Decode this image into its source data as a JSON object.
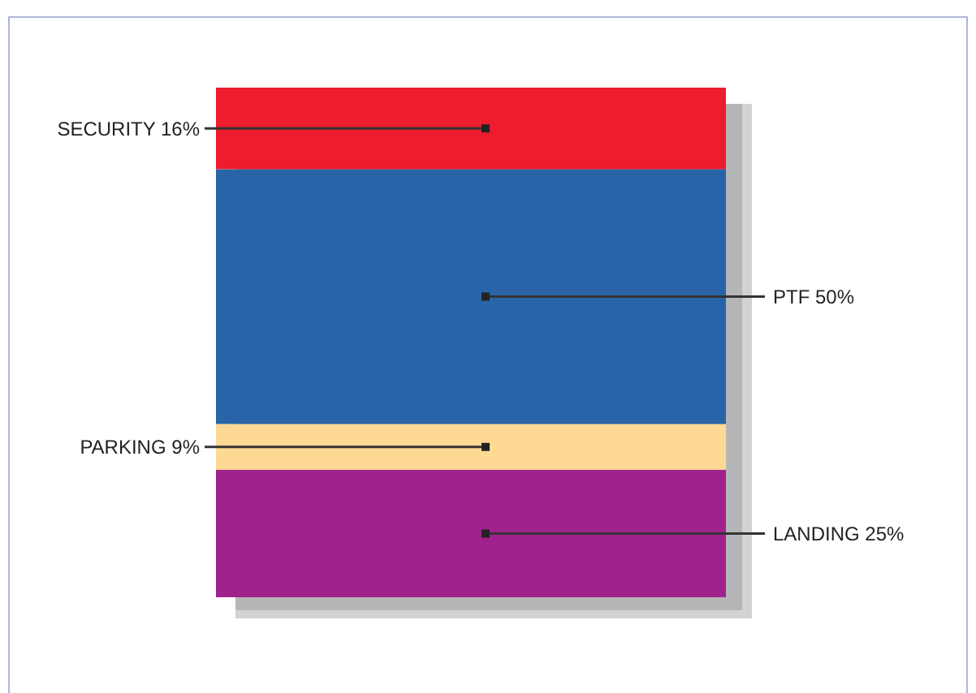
{
  "chart_data": {
    "type": "bar",
    "stacked": true,
    "categories": [
      null
    ],
    "series": [
      {
        "color": "#a0228c",
        "values": [
          25
        ],
        "value_labels": [
          "LANDING 25%"
        ]
      },
      {
        "color": "#fed994",
        "values": [
          9
        ],
        "value_labels": [
          "PARKING 9%"
        ]
      },
      {
        "color": "#2964a8",
        "values": [
          50
        ],
        "value_labels": [
          "PTF 50%"
        ]
      },
      {
        "color": "#ed1c2e",
        "values": [
          16
        ],
        "value_labels": [
          "SECURITY 16%"
        ]
      }
    ]
  }
}
